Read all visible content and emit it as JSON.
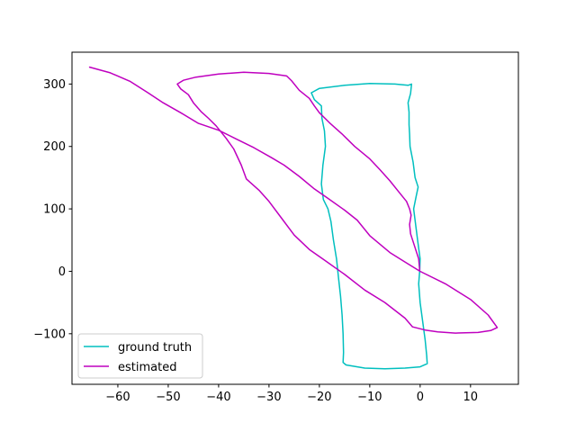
{
  "chart_data": {
    "type": "line",
    "title": "",
    "xlabel": "",
    "ylabel": "",
    "xlim": [
      -69.1,
      19.5
    ],
    "ylim": [
      -181,
      351
    ],
    "xticks": [
      -60,
      -50,
      -40,
      -30,
      -20,
      -10,
      0,
      10
    ],
    "yticks": [
      -100,
      0,
      100,
      200,
      300
    ],
    "xtick_labels": [
      "−60",
      "−50",
      "−40",
      "−30",
      "−20",
      "−10",
      "0",
      "10"
    ],
    "ytick_labels": [
      "−100",
      "0",
      "100",
      "200",
      "300"
    ],
    "grid": false,
    "legend_position": "lower-left",
    "series": [
      {
        "name": "ground truth",
        "color": "#00bfbf",
        "points": [
          [
            -0.1,
            0
          ],
          [
            0,
            20
          ],
          [
            -0.5,
            50
          ],
          [
            -1.3,
            100
          ],
          [
            -0.8,
            120
          ],
          [
            -0.4,
            135
          ],
          [
            -1,
            150
          ],
          [
            -1.4,
            175
          ],
          [
            -2,
            200
          ],
          [
            -2.1,
            220
          ],
          [
            -2.2,
            235
          ],
          [
            -2.2,
            255
          ],
          [
            -2.4,
            270
          ],
          [
            -1.9,
            285
          ],
          [
            -1.7,
            300
          ],
          [
            -2.4,
            298
          ],
          [
            -5,
            300
          ],
          [
            -10,
            301
          ],
          [
            -15,
            298
          ],
          [
            -20,
            293
          ],
          [
            -21.6,
            286
          ],
          [
            -21,
            275
          ],
          [
            -19.6,
            265
          ],
          [
            -19.5,
            245
          ],
          [
            -19,
            225
          ],
          [
            -18.8,
            200
          ],
          [
            -19.3,
            170
          ],
          [
            -19.6,
            140
          ],
          [
            -19.2,
            115
          ],
          [
            -18.3,
            100
          ],
          [
            -17.7,
            80
          ],
          [
            -17.2,
            50
          ],
          [
            -16.6,
            20
          ],
          [
            -16.2,
            -10
          ],
          [
            -15.8,
            -40
          ],
          [
            -15.5,
            -70
          ],
          [
            -15.3,
            -100
          ],
          [
            -15.2,
            -130
          ],
          [
            -15.3,
            -146
          ],
          [
            -14.7,
            -150
          ],
          [
            -11,
            -155
          ],
          [
            -7,
            -156
          ],
          [
            -3,
            -155
          ],
          [
            0,
            -153
          ],
          [
            1.4,
            -148
          ],
          [
            1.3,
            -135
          ],
          [
            1,
            -110
          ],
          [
            0.5,
            -80
          ],
          [
            0,
            -50
          ],
          [
            -0.3,
            -20
          ],
          [
            -0.1,
            0
          ]
        ]
      },
      {
        "name": "estimated",
        "color": "#bf00bf",
        "points": [
          [
            -0.1,
            2
          ],
          [
            -0.3,
            20
          ],
          [
            -1.1,
            40
          ],
          [
            -1.9,
            60
          ],
          [
            -2.1,
            75
          ],
          [
            -1.8,
            90
          ],
          [
            -2.1,
            100
          ],
          [
            -2.7,
            112
          ],
          [
            -4,
            125
          ],
          [
            -6,
            145
          ],
          [
            -8,
            163
          ],
          [
            -10,
            180
          ],
          [
            -13,
            200
          ],
          [
            -15.5,
            220
          ],
          [
            -18,
            238
          ],
          [
            -20,
            254
          ],
          [
            -21,
            265
          ],
          [
            -22,
            277
          ],
          [
            -24,
            290
          ],
          [
            -25.5,
            305
          ],
          [
            -26.5,
            313
          ],
          [
            -30,
            317
          ],
          [
            -35,
            319
          ],
          [
            -40,
            316
          ],
          [
            -44.5,
            311
          ],
          [
            -47,
            306
          ],
          [
            -48.2,
            300
          ],
          [
            -47.5,
            292
          ],
          [
            -46,
            283
          ],
          [
            -45,
            270
          ],
          [
            -43.5,
            256
          ],
          [
            -42,
            245
          ],
          [
            -40.5,
            233
          ],
          [
            -38.5,
            213
          ],
          [
            -37,
            196
          ],
          [
            -35.5,
            170
          ],
          [
            -34.5,
            148
          ],
          [
            -32,
            130
          ],
          [
            -30,
            112
          ],
          [
            -27.5,
            85
          ],
          [
            -25,
            58
          ],
          [
            -22,
            35
          ],
          [
            -19,
            18
          ],
          [
            -15,
            -5
          ],
          [
            -11,
            -30
          ],
          [
            -7,
            -50
          ],
          [
            -3,
            -75
          ],
          [
            -1.5,
            -89
          ],
          [
            1,
            -94
          ],
          [
            3.5,
            -97
          ],
          [
            7,
            -99
          ],
          [
            11.5,
            -98
          ],
          [
            14,
            -95
          ],
          [
            15.3,
            -90
          ],
          [
            13.5,
            -70
          ],
          [
            10,
            -45
          ],
          [
            5,
            -20
          ],
          [
            0,
            0
          ],
          [
            -3,
            15
          ],
          [
            -6,
            30
          ],
          [
            -10,
            57
          ],
          [
            -12.5,
            82
          ],
          [
            -15,
            98
          ],
          [
            -18.5,
            118
          ],
          [
            -21,
            132
          ],
          [
            -24,
            152
          ],
          [
            -27,
            170
          ],
          [
            -29.5,
            182
          ],
          [
            -33,
            198
          ],
          [
            -36.5,
            212
          ],
          [
            -40,
            226
          ],
          [
            -44,
            237
          ],
          [
            -47.5,
            254
          ],
          [
            -51,
            270
          ],
          [
            -54,
            286
          ],
          [
            -57.5,
            304
          ],
          [
            -61.5,
            318
          ],
          [
            -65.6,
            327
          ]
        ]
      }
    ]
  }
}
